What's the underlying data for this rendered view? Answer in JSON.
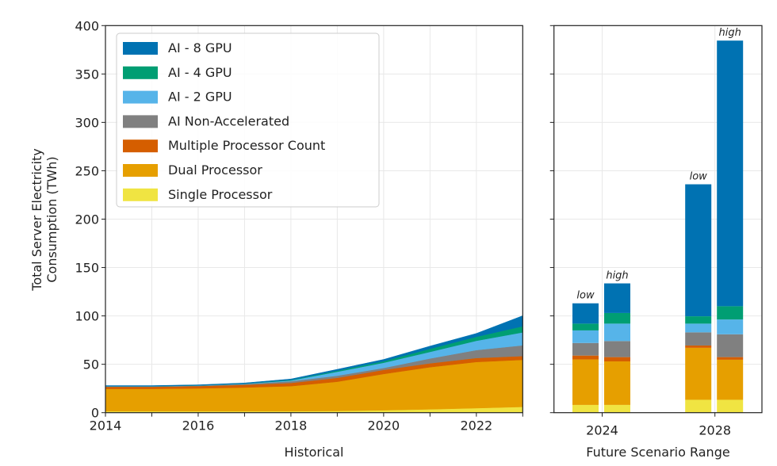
{
  "chart_data": {
    "type": "area",
    "title": "",
    "ylabel_lines": [
      "Total Server Electricity",
      "Consumption (TWh)"
    ],
    "ylim": [
      0,
      400
    ],
    "yticks": [
      0,
      50,
      100,
      150,
      200,
      250,
      300,
      350,
      400
    ],
    "grid": true,
    "legend_position": "top-left",
    "series_order_bottom_to_top": [
      "Single Processor",
      "Dual Processor",
      "Multiple Processor Count",
      "AI Non-Accelerated",
      "AI - 2 GPU",
      "AI - 4 GPU",
      "AI - 8 GPU"
    ],
    "legend": [
      {
        "name": "AI - 8 GPU",
        "color": "#0072b2"
      },
      {
        "name": "AI - 4 GPU",
        "color": "#009e73"
      },
      {
        "name": "AI - 2 GPU",
        "color": "#56b4e9"
      },
      {
        "name": "AI Non-Accelerated",
        "color": "#808080"
      },
      {
        "name": "Multiple Processor Count",
        "color": "#d55e00"
      },
      {
        "name": "Dual Processor",
        "color": "#e69f00"
      },
      {
        "name": "Single Processor",
        "color": "#f0e442"
      }
    ],
    "panels": [
      {
        "name": "historical",
        "type": "stacked-area",
        "xlabel": "Historical",
        "xlim": [
          2014,
          2023
        ],
        "xticks": [
          2014,
          2016,
          2018,
          2020,
          2022
        ],
        "x": [
          2014,
          2015,
          2016,
          2017,
          2018,
          2019,
          2020,
          2021,
          2022,
          2023
        ],
        "series": [
          {
            "name": "Single Processor",
            "values": [
              1.5,
              1.5,
              1.5,
              1.5,
              1.5,
              1.8,
              2.5,
              3.5,
              4.7,
              6.0
            ]
          },
          {
            "name": "Dual Processor",
            "values": [
              23.1,
              23.1,
              23.6,
              24.5,
              25.9,
              30.2,
              37.5,
              43.5,
              47.7,
              48.6
            ]
          },
          {
            "name": "Multiple Processor Count",
            "values": [
              2.2,
              2.2,
              2.4,
              2.8,
              3.3,
              4.0,
              4.2,
              4.0,
              4.1,
              3.9
            ]
          },
          {
            "name": "AI Non-Accelerated",
            "values": [
              0.3,
              0.3,
              0.4,
              0.8,
              1.8,
              2.2,
              2.0,
              5.0,
              8.2,
              11.1
            ]
          },
          {
            "name": "AI - 2 GPU",
            "values": [
              0.2,
              0.2,
              0.2,
              0.3,
              0.8,
              4.1,
              5.4,
              6.8,
              9.6,
              13.4
            ]
          },
          {
            "name": "AI - 4 GPU",
            "values": [
              0.1,
              0.1,
              0.1,
              0.2,
              0.5,
              1.1,
              1.6,
              3.2,
              4.1,
              6.3
            ]
          },
          {
            "name": "AI - 8 GPU",
            "values": [
              0.6,
              0.6,
              0.6,
              0.6,
              1.0,
              1.4,
              1.8,
              2.8,
              3.5,
              10.9
            ]
          }
        ]
      },
      {
        "name": "future",
        "type": "stacked-bar",
        "xlabel": "Future Scenario Range",
        "xticks": [
          2024,
          2028
        ],
        "bars": [
          {
            "year": 2024,
            "label": "low",
            "values": {
              "Single Processor": 8,
              "Dual Processor": 47,
              "Multiple Processor Count": 4,
              "AI Non-Accelerated": 13,
              "AI - 2 GPU": 13,
              "AI - 4 GPU": 7,
              "AI - 8 GPU": 21
            },
            "total": 113
          },
          {
            "year": 2024,
            "label": "high",
            "values": {
              "Single Processor": 8,
              "Dual Processor": 45,
              "Multiple Processor Count": 4.4,
              "AI Non-Accelerated": 16.6,
              "AI - 2 GPU": 18,
              "AI - 4 GPU": 11,
              "AI - 8 GPU": 30.6
            },
            "total": 133.6
          },
          {
            "year": 2028,
            "label": "low",
            "values": {
              "Single Processor": 13.3,
              "Dual Processor": 53.7,
              "Multiple Processor Count": 2.4,
              "AI Non-Accelerated": 13.6,
              "AI - 2 GPU": 9,
              "AI - 4 GPU": 7.6,
              "AI - 8 GPU": 136.4
            },
            "total": 236
          },
          {
            "year": 2028,
            "label": "high",
            "values": {
              "Single Processor": 13.3,
              "Dual Processor": 41.4,
              "Multiple Processor Count": 2.7,
              "AI Non-Accelerated": 23.6,
              "AI - 2 GPU": 15.3,
              "AI - 4 GPU": 13.7,
              "AI - 8 GPU": 274.5
            },
            "total": 384.5
          }
        ]
      }
    ]
  }
}
